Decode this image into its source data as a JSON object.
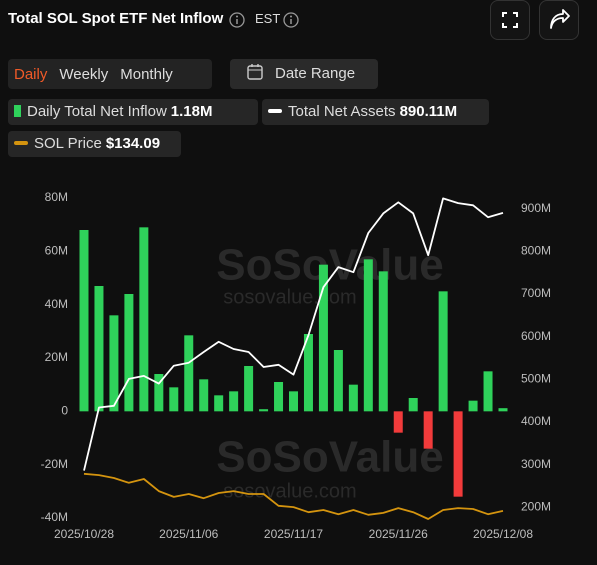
{
  "header": {
    "title": "Total SOL Spot ETF Net Inflow",
    "timezone": "EST"
  },
  "tabs": [
    "Daily",
    "Weekly",
    "Monthly"
  ],
  "active_tab": 0,
  "date_range": "Date Range",
  "watermark": [
    "SoSoValue",
    "sosovalue.com"
  ],
  "chart_data": {
    "type": "combo",
    "categories": [
      "2025/10/28",
      null,
      null,
      null,
      null,
      null,
      null,
      "2025/11/06",
      null,
      null,
      null,
      null,
      null,
      null,
      "2025/11/17",
      null,
      null,
      null,
      null,
      null,
      null,
      "2025/11/26",
      null,
      null,
      null,
      null,
      null,
      null,
      "2025/12/08"
    ],
    "ylim": [
      -40,
      80
    ],
    "yticks": [
      {
        "value": 80,
        "label": "80M"
      },
      {
        "value": 60,
        "label": "60M"
      },
      {
        "value": 40,
        "label": "40M"
      },
      {
        "value": 20,
        "label": "20M"
      },
      0,
      {
        "value": -20,
        "label": "-20M"
      },
      {
        "value": -40,
        "label": "-40M"
      }
    ],
    "y2lim": [
      175,
      925
    ],
    "y2ticks": [
      {
        "value": 900,
        "label": "900M"
      },
      {
        "value": 800,
        "label": "800M"
      },
      {
        "value": 700,
        "label": "700M"
      },
      {
        "value": 600,
        "label": "600M"
      },
      {
        "value": 500,
        "label": "500M"
      },
      {
        "value": 400,
        "label": "400M"
      },
      {
        "value": 300,
        "label": "300M"
      },
      {
        "value": 200,
        "label": "200M"
      }
    ],
    "y3lim": [
      123,
      623
    ],
    "grid": false,
    "series": [
      {
        "name": "Daily Total Net Inflow",
        "legend_value": "1.18M",
        "type": "bar",
        "color": "#2fd25b",
        "negative_color": "#f23b3b",
        "values": [
          68,
          47,
          36,
          44,
          69,
          14,
          9,
          28.5,
          12,
          6,
          7.5,
          17,
          0.8,
          11,
          7.5,
          29,
          55,
          23,
          10,
          57,
          52.5,
          -8,
          5,
          -14,
          45,
          -32,
          4,
          15,
          1.18
        ]
      },
      {
        "name": "Total Net Assets",
        "legend_value": "890.11M",
        "type": "line",
        "axis": "y2",
        "color": "#ffffff",
        "values": [
          286,
          434,
          438,
          501,
          508,
          490,
          532,
          539,
          564,
          588,
          571,
          564,
          529,
          534,
          511,
          604,
          716,
          763,
          751,
          843,
          889,
          915,
          889,
          791,
          924,
          913,
          908,
          880,
          890.11
        ]
      },
      {
        "name": "SOL Price",
        "legend_value": "$134.09",
        "type": "line",
        "axis": "y3",
        "color": "#d4940f",
        "values": [
          192,
          190,
          185.5,
          178,
          184,
          165,
          156,
          160.5,
          154,
          162,
          165,
          160.5,
          160.5,
          142,
          140,
          132,
          135.5,
          129,
          135.5,
          128,
          131,
          138.5,
          132,
          121.5,
          135.5,
          138.5,
          137,
          129,
          134.09
        ]
      }
    ]
  }
}
